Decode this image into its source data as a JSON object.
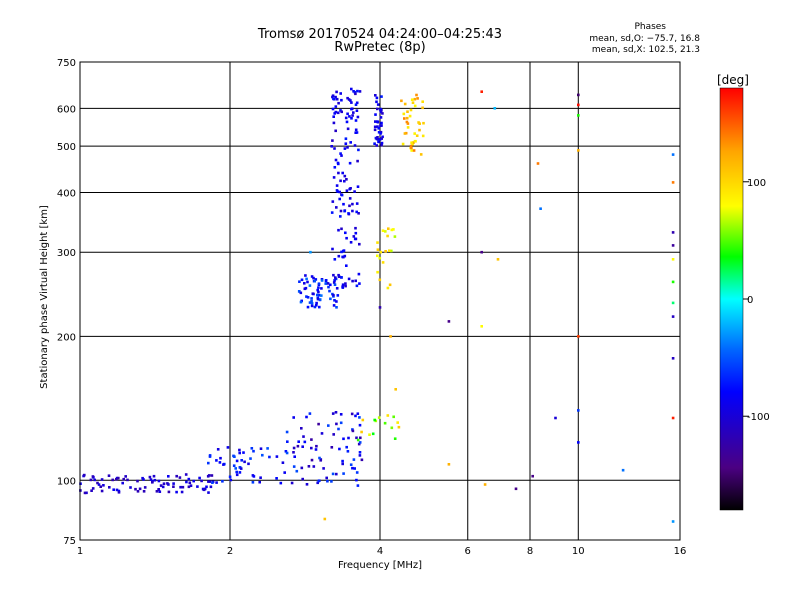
{
  "header": {
    "title_line1": "Tromsø 20170524 04:24:00–04:25:43",
    "title_line2": "RwPretec (8p)"
  },
  "phase_stats": {
    "label": "Phases",
    "o_mode": "mean, sd,O: −75.7, 16.8",
    "x_mode": "mean, sd,X: 102.5, 21.3"
  },
  "chart_data": {
    "type": "scatter",
    "xlabel": "Frequency [MHz]",
    "ylabel": "Stationary phase Virtual Height [km]",
    "x_scale": "log",
    "y_scale": "log",
    "xlim": [
      1,
      16
    ],
    "ylim": [
      75,
      750
    ],
    "x_ticks": [
      1,
      2,
      4,
      6,
      8,
      10,
      16
    ],
    "y_ticks": [
      75,
      100,
      200,
      300,
      400,
      500,
      600,
      750
    ],
    "grid": true,
    "colorbar": {
      "title": "[deg]",
      "range": [
        -180,
        180
      ],
      "ticks": [
        -100,
        0,
        100
      ],
      "colors": [
        "#000000",
        "#4b0082",
        "#0000ff",
        "#0066ff",
        "#00ffff",
        "#00ff00",
        "#ffff00",
        "#ffa500",
        "#ff0000"
      ]
    },
    "clusters": [
      {
        "x": [
          1.0,
          1.9
        ],
        "y": [
          94,
          103
        ],
        "phase": [
          -120,
          -85
        ],
        "n": 90
      },
      {
        "x": [
          1.8,
          2.6
        ],
        "y": [
          98,
          118
        ],
        "phase": [
          -100,
          -50
        ],
        "n": 50
      },
      {
        "x": [
          2.6,
          3.7
        ],
        "y": [
          97,
          140
        ],
        "phase": [
          -130,
          -50
        ],
        "n": 80
      },
      {
        "x": [
          2.75,
          3.3
        ],
        "y": [
          230,
          270
        ],
        "phase": [
          -100,
          -40
        ],
        "n": 70
      },
      {
        "x": [
          3.2,
          3.65
        ],
        "y": [
          250,
          660
        ],
        "phase": [
          -110,
          -70
        ],
        "n": 140
      },
      {
        "x": [
          3.9,
          4.05
        ],
        "y": [
          500,
          650
        ],
        "phase": [
          -110,
          -70
        ],
        "n": 40
      },
      {
        "x": [
          3.95,
          4.3
        ],
        "y": [
          250,
          340
        ],
        "phase": [
          60,
          110
        ],
        "n": 20
      },
      {
        "x": [
          4.4,
          4.9
        ],
        "y": [
          480,
          640
        ],
        "phase": [
          80,
          140
        ],
        "n": 40
      },
      {
        "x": [
          3.6,
          4.4
        ],
        "y": [
          120,
          140
        ],
        "phase": [
          30,
          110
        ],
        "n": 15
      }
    ],
    "sparse_points": [
      {
        "x": 6.4,
        "y": 650,
        "phase": 170
      },
      {
        "x": 6.4,
        "y": 300,
        "phase": -140
      },
      {
        "x": 6.4,
        "y": 210,
        "phase": 80
      },
      {
        "x": 6.8,
        "y": 600,
        "phase": -20
      },
      {
        "x": 6.9,
        "y": 290,
        "phase": 110
      },
      {
        "x": 5.5,
        "y": 215,
        "phase": -140
      },
      {
        "x": 8.3,
        "y": 460,
        "phase": 140
      },
      {
        "x": 8.4,
        "y": 370,
        "phase": -40
      },
      {
        "x": 10.0,
        "y": 640,
        "phase": -150
      },
      {
        "x": 10.0,
        "y": 610,
        "phase": 175
      },
      {
        "x": 10.0,
        "y": 580,
        "phase": 40
      },
      {
        "x": 10.0,
        "y": 490,
        "phase": 120
      },
      {
        "x": 10.0,
        "y": 200,
        "phase": 160
      },
      {
        "x": 10.0,
        "y": 140,
        "phase": -60
      },
      {
        "x": 10.0,
        "y": 120,
        "phase": -80
      },
      {
        "x": 9.0,
        "y": 135,
        "phase": -100
      },
      {
        "x": 12.3,
        "y": 105,
        "phase": -40
      },
      {
        "x": 15.5,
        "y": 480,
        "phase": -40
      },
      {
        "x": 15.5,
        "y": 420,
        "phase": 140
      },
      {
        "x": 15.5,
        "y": 330,
        "phase": -120
      },
      {
        "x": 15.5,
        "y": 310,
        "phase": -130
      },
      {
        "x": 15.5,
        "y": 290,
        "phase": 80
      },
      {
        "x": 15.5,
        "y": 260,
        "phase": 40
      },
      {
        "x": 15.5,
        "y": 235,
        "phase": 20
      },
      {
        "x": 15.5,
        "y": 220,
        "phase": -110
      },
      {
        "x": 15.5,
        "y": 180,
        "phase": -110
      },
      {
        "x": 15.5,
        "y": 135,
        "phase": 170
      },
      {
        "x": 15.5,
        "y": 82,
        "phase": -30
      },
      {
        "x": 5.5,
        "y": 108,
        "phase": 120
      },
      {
        "x": 6.5,
        "y": 98,
        "phase": 120
      },
      {
        "x": 7.5,
        "y": 96,
        "phase": -140
      },
      {
        "x": 8.1,
        "y": 102,
        "phase": -140
      },
      {
        "x": 4.2,
        "y": 200,
        "phase": 120
      },
      {
        "x": 4.0,
        "y": 230,
        "phase": -120
      },
      {
        "x": 4.3,
        "y": 155,
        "phase": 110
      },
      {
        "x": 3.1,
        "y": 83,
        "phase": 110
      },
      {
        "x": 2.9,
        "y": 300,
        "phase": -30
      }
    ]
  }
}
